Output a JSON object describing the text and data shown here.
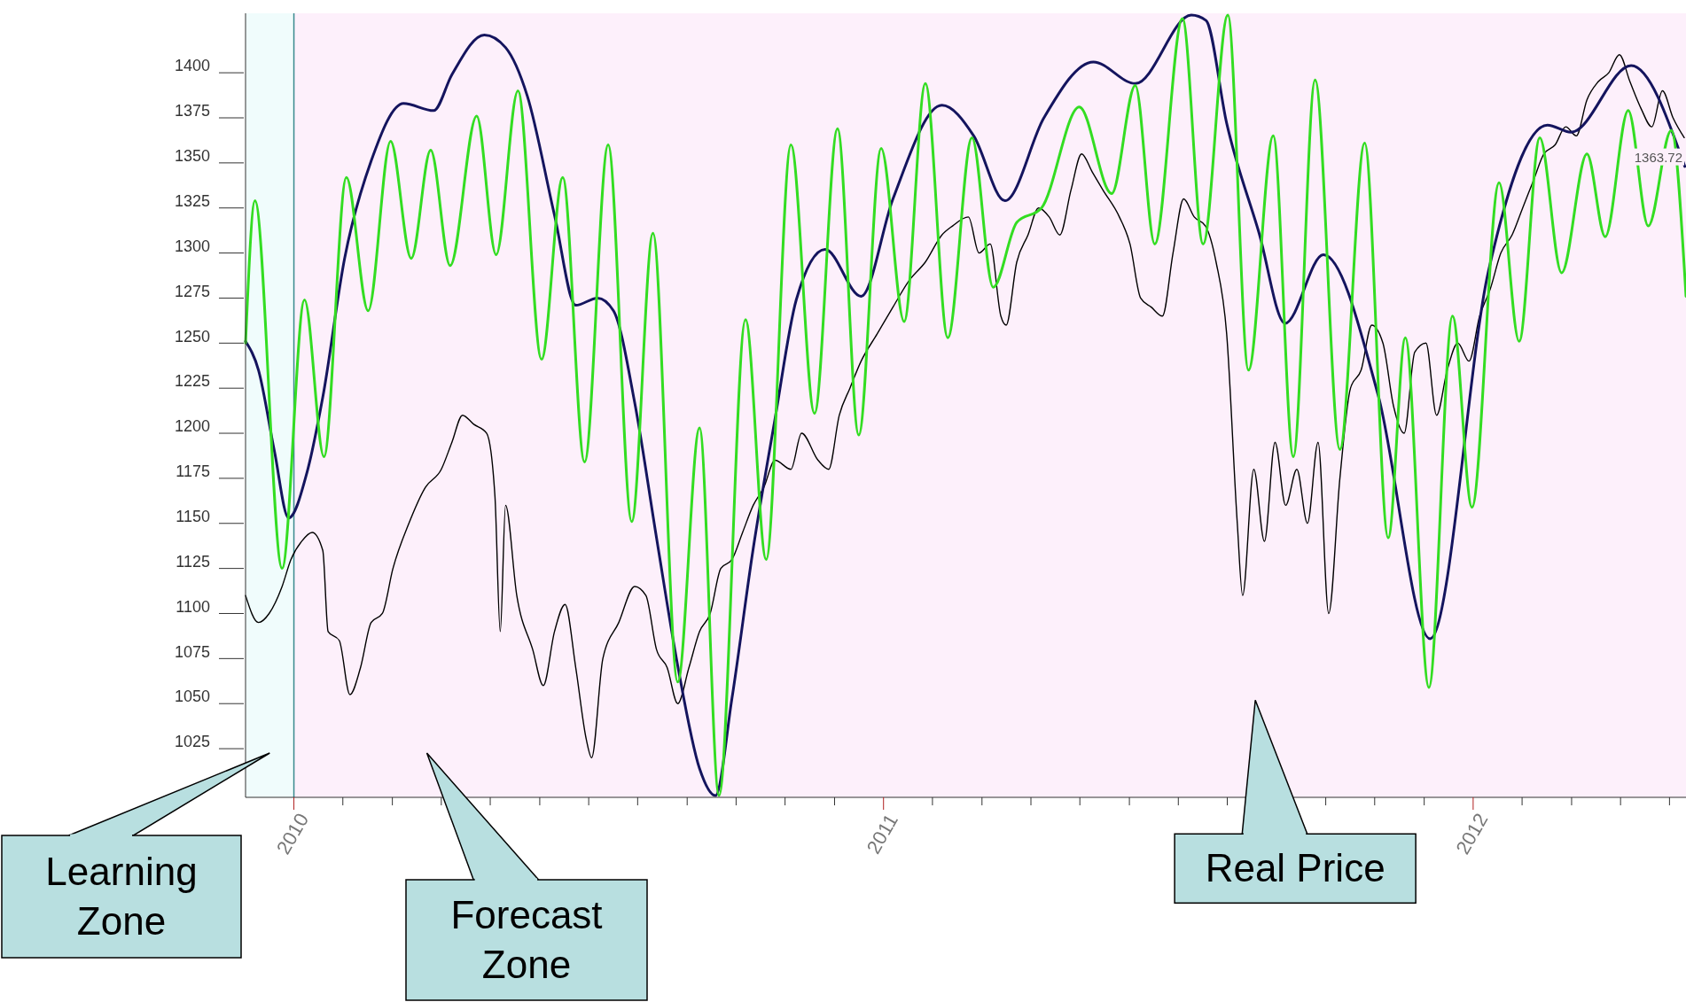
{
  "chart_data": {
    "type": "line",
    "xlim": [
      2009.918,
      2012.361
    ],
    "ylim": [
      998,
      1433
    ],
    "xticks": [
      2010,
      {
        "value": 2010.083,
        "label": null
      },
      {
        "value": 2010.167,
        "label": null
      },
      {
        "value": 2010.25,
        "label": null
      },
      {
        "value": 2010.333,
        "label": null
      },
      {
        "value": 2010.417,
        "label": null
      },
      {
        "value": 2010.5,
        "label": null
      },
      {
        "value": 2010.583,
        "label": null
      },
      {
        "value": 2010.667,
        "label": null
      },
      {
        "value": 2010.75,
        "label": null
      },
      {
        "value": 2010.833,
        "label": null
      },
      {
        "value": 2010.917,
        "label": null
      },
      2011,
      {
        "value": 2011.083,
        "label": null
      },
      {
        "value": 2011.167,
        "label": null
      },
      {
        "value": 2011.25,
        "label": null
      },
      {
        "value": 2011.333,
        "label": null
      },
      {
        "value": 2011.417,
        "label": null
      },
      {
        "value": 2011.5,
        "label": null
      },
      {
        "value": 2011.583,
        "label": null
      },
      {
        "value": 2011.667,
        "label": null
      },
      {
        "value": 2011.75,
        "label": null
      },
      {
        "value": 2011.833,
        "label": null
      },
      {
        "value": 2011.917,
        "label": null
      },
      2012,
      {
        "value": 2012.083,
        "label": null
      },
      {
        "value": 2012.167,
        "label": null
      },
      {
        "value": 2012.25,
        "label": null
      },
      {
        "value": 2012.333,
        "label": null
      }
    ],
    "yticks": [
      1025,
      1050,
      1075,
      1100,
      1125,
      1150,
      1175,
      1200,
      1225,
      1250,
      1275,
      1300,
      1325,
      1350,
      1375,
      1400
    ],
    "grid": false,
    "marker": "none",
    "line_style": "solid",
    "bands": [
      {
        "axis": "x",
        "from": 2009.918,
        "to": 2010,
        "label": "Learning Zone",
        "color": "#f0fcfc"
      },
      {
        "axis": "x",
        "from": 2010,
        "to": 2012.361,
        "label": "Forecast Zone",
        "color": "#fdf0fb"
      }
    ],
    "annotations": [
      "Real Price",
      "1363.72"
    ],
    "ref_lines": [
      {
        "axis": "x",
        "value": 2010,
        "color": "#3a8a8e"
      }
    ],
    "series": [
      {
        "color": "#000000",
        "x": [
          2009.918,
          2009.94,
          2009.958,
          2009.98,
          2009.995,
          2010.013,
          2010.031,
          2010.049,
          2010.058,
          2010.077,
          2010.095,
          2010.113,
          2010.131,
          2010.15,
          2010.168,
          2010.195,
          2010.223,
          2010.25,
          2010.268,
          2010.286,
          2010.305,
          2010.327,
          2010.341,
          2010.35,
          2010.359,
          2010.378,
          2010.405,
          2010.423,
          2010.442,
          2010.46,
          2010.478,
          2010.496,
          2010.505,
          2010.524,
          2010.551,
          2010.578,
          2010.597,
          2010.615,
          2010.633,
          2010.651,
          2010.67,
          2010.688,
          2010.706,
          2010.724,
          2010.743,
          2010.761,
          2010.779,
          2010.797,
          2010.816,
          2010.843,
          2010.861,
          2010.889,
          2010.907,
          2010.925,
          2010.943,
          2010.962,
          2010.989,
          2011.016,
          2011.044,
          2011.071,
          2011.099,
          2011.117,
          2011.144,
          2011.162,
          2011.181,
          2011.199,
          2011.208,
          2011.226,
          2011.245,
          2011.263,
          2011.281,
          2011.299,
          2011.318,
          2011.336,
          2011.354,
          2011.372,
          2011.4,
          2011.418,
          2011.436,
          2011.454,
          2011.473,
          2011.491,
          2011.509,
          2011.527,
          2011.546,
          2011.564,
          2011.582,
          2011.6,
          2011.609,
          2011.628,
          2011.646,
          2011.664,
          2011.682,
          2011.701,
          2011.719,
          2011.737,
          2011.755,
          2011.774,
          2011.792,
          2011.81,
          2011.828,
          2011.847,
          2011.865,
          2011.883,
          2011.901,
          2011.92,
          2011.938,
          2011.956,
          2011.974,
          2011.993,
          2012.011,
          2012.029,
          2012.047,
          2012.066,
          2012.084,
          2012.102,
          2012.12,
          2012.139,
          2012.157,
          2012.175,
          2012.193,
          2012.212,
          2012.23,
          2012.248,
          2012.266,
          2012.285,
          2012.303,
          2012.321,
          2012.339,
          2012.358
        ],
        "values": [
          1110,
          1095,
          1100,
          1115,
          1130,
          1140,
          1145,
          1135,
          1090,
          1085,
          1055,
          1070,
          1095,
          1100,
          1125,
          1150,
          1170,
          1180,
          1195,
          1210,
          1205,
          1200,
          1165,
          1090,
          1160,
          1110,
          1080,
          1060,
          1090,
          1105,
          1070,
          1030,
          1020,
          1075,
          1095,
          1115,
          1110,
          1080,
          1070,
          1050,
          1070,
          1090,
          1100,
          1125,
          1130,
          1145,
          1160,
          1170,
          1185,
          1180,
          1200,
          1185,
          1180,
          1210,
          1225,
          1240,
          1255,
          1270,
          1285,
          1295,
          1310,
          1315,
          1320,
          1300,
          1305,
          1265,
          1260,
          1295,
          1310,
          1325,
          1320,
          1310,
          1335,
          1355,
          1345,
          1335,
          1320,
          1305,
          1275,
          1270,
          1265,
          1300,
          1330,
          1320,
          1315,
          1295,
          1255,
          1150,
          1110,
          1180,
          1140,
          1195,
          1160,
          1180,
          1150,
          1195,
          1100,
          1175,
          1225,
          1235,
          1260,
          1250,
          1215,
          1200,
          1245,
          1250,
          1210,
          1235,
          1250,
          1240,
          1265,
          1280,
          1300,
          1310,
          1325,
          1340,
          1355,
          1360,
          1370,
          1365,
          1385,
          1395,
          1400,
          1410,
          1395,
          1380,
          1370,
          1390,
          1375,
          1364
        ]
      },
      {
        "color": "#14145e",
        "x": [
          2009.918,
          2009.94,
          2009.967,
          2009.991,
          2010.022,
          2010.049,
          2010.086,
          2010.131,
          2010.186,
          2010.237,
          2010.268,
          2010.323,
          2010.359,
          2010.396,
          2010.442,
          2010.478,
          2010.515,
          2010.542,
          2010.578,
          2010.615,
          2010.651,
          2010.688,
          2010.715,
          2010.743,
          2010.779,
          2010.816,
          2010.852,
          2010.901,
          2010.962,
          2011.016,
          2011.099,
          2011.153,
          2011.206,
          2011.272,
          2011.356,
          2011.427,
          2011.522,
          2011.547,
          2011.582,
          2011.637,
          2011.681,
          2011.746,
          2011.839,
          2011.927,
          2012.026,
          2012.126,
          2012.166,
          2012.268,
          2012.359
        ],
        "values": [
          1251,
          1235,
          1190,
          1153,
          1178,
          1220,
          1297,
          1351,
          1383,
          1379,
          1399,
          1421,
          1414,
          1387,
          1321,
          1271,
          1275,
          1268,
          1217,
          1142,
          1071,
          1014,
          999,
          1053,
          1136,
          1208,
          1274,
          1302,
          1276,
          1330,
          1382,
          1365,
          1329,
          1375,
          1406,
          1394,
          1432,
          1429,
          1372,
          1311,
          1261,
          1299,
          1221,
          1086,
          1290,
          1371,
          1367,
          1404,
          1348
        ]
      },
      {
        "color": "#33dd22",
        "x": [
          2009.918,
          2009.934,
          2009.98,
          2010.018,
          2010.051,
          2010.089,
          2010.126,
          2010.164,
          2010.199,
          2010.232,
          2010.265,
          2010.31,
          2010.343,
          2010.38,
          2010.42,
          2010.456,
          2010.493,
          2010.533,
          2010.573,
          2010.609,
          2010.651,
          2010.688,
          2010.721,
          2010.766,
          2010.801,
          2010.843,
          2010.883,
          2010.922,
          2010.958,
          2010.996,
          2011.035,
          2011.071,
          2011.109,
          2011.15,
          2011.186,
          2011.226,
          2011.268,
          2011.332,
          2011.387,
          2011.427,
          2011.46,
          2011.507,
          2011.542,
          2011.584,
          2011.619,
          2011.661,
          2011.695,
          2011.732,
          2011.774,
          2011.816,
          2011.856,
          2011.885,
          2011.925,
          2011.965,
          2011.998,
          2012.044,
          2012.078,
          2012.113,
          2012.15,
          2012.193,
          2012.224,
          2012.263,
          2012.297,
          2012.336,
          2012.361
        ],
        "values": [
          1250,
          1329,
          1125,
          1274,
          1187,
          1342,
          1268,
          1362,
          1297,
          1357,
          1293,
          1376,
          1299,
          1390,
          1241,
          1342,
          1184,
          1360,
          1151,
          1311,
          1062,
          1203,
          999,
          1263,
          1130,
          1360,
          1211,
          1369,
          1199,
          1358,
          1262,
          1394,
          1253,
          1364,
          1281,
          1317,
          1325,
          1381,
          1333,
          1393,
          1305,
          1430,
          1305,
          1432,
          1235,
          1365,
          1187,
          1396,
          1191,
          1361,
          1142,
          1253,
          1059,
          1265,
          1159,
          1339,
          1251,
          1364,
          1289,
          1355,
          1309,
          1379,
          1315,
          1368,
          1276
        ]
      }
    ]
  }
}
